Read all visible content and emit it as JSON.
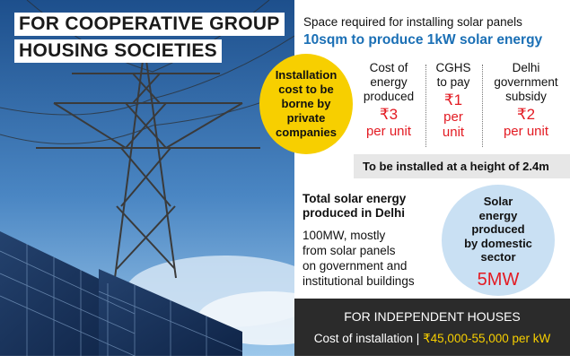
{
  "title": {
    "line1": "FOR COOPERATIVE GROUP",
    "line2": "HOUSING SOCIETIES"
  },
  "space": {
    "label": "Space required for installing solar panels",
    "value": "10sqm to produce 1kW solar energy"
  },
  "installation_note": "Installation cost to be borne by private companies",
  "columns": [
    {
      "label_lines": [
        "Cost of",
        "energy",
        "produced"
      ],
      "value": "₹3",
      "unit": "per unit"
    },
    {
      "label_lines": [
        "CGHS",
        "to pay"
      ],
      "value": "₹1",
      "unit_lines": [
        "per",
        "unit"
      ]
    },
    {
      "label_lines": [
        "Delhi",
        "government",
        "subsidy"
      ],
      "value": "₹2",
      "unit": "per unit"
    }
  ],
  "height_note": "To be installed at a height of 2.4m",
  "total": {
    "title_line1": "Total solar energy",
    "title_line2": "produced in Delhi",
    "body_lines": [
      "100MW, mostly",
      "from solar panels",
      "on government and",
      "institutional buildings"
    ]
  },
  "domestic": {
    "label_lines": [
      "Solar",
      "energy",
      "produced",
      "by domestic",
      "sector"
    ],
    "value": "5MW"
  },
  "footer": {
    "heading": "FOR INDEPENDENT HOUSES",
    "cost_label": "Cost of installation | ",
    "cost_value": "₹45,000-55,000 per kW"
  },
  "colors": {
    "accent_red": "#e31b23",
    "accent_blue": "#1a6fb5",
    "yellow": "#f7cf00",
    "light_blue": "#c9e0f3",
    "footer_bg": "#2b2b2b"
  }
}
